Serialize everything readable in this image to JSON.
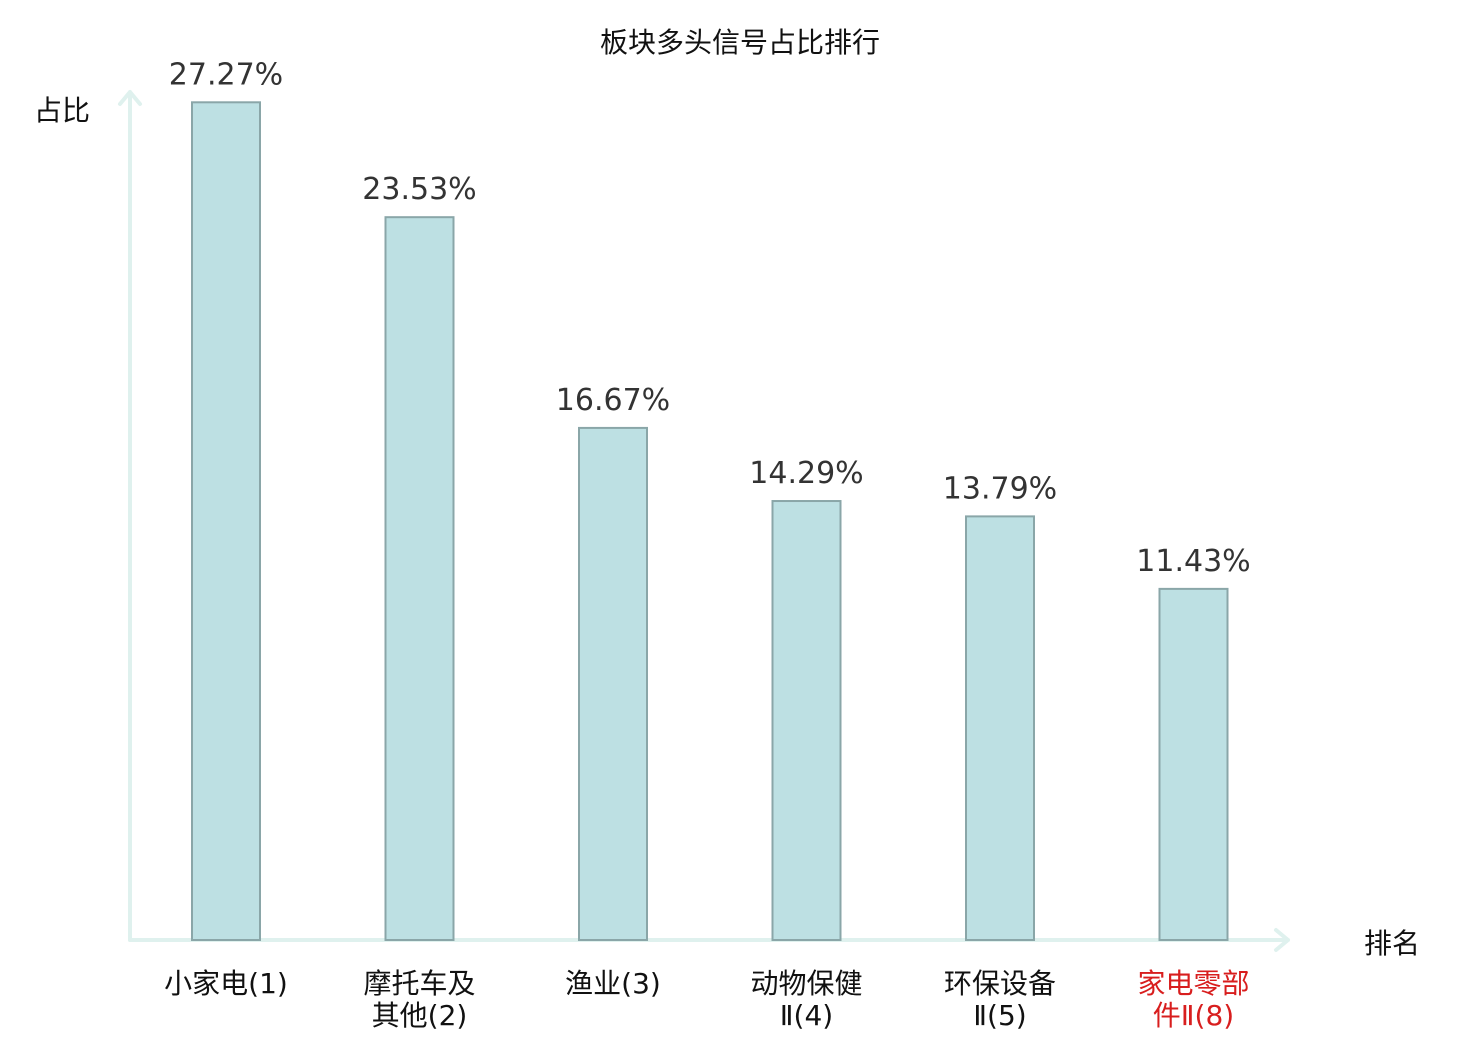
{
  "chart_data": {
    "type": "bar",
    "title": "板块多头信号占比排行",
    "ylabel": "占比",
    "xlabel": "排名",
    "ylim": [
      0,
      30.6
    ],
    "grid": false,
    "categories": [
      [
        "小家电(1)"
      ],
      [
        "摩托车及",
        "其他(2)"
      ],
      [
        "渔业(3)"
      ],
      [
        "动物保健",
        "Ⅱ(4)"
      ],
      [
        "环保设备",
        "Ⅱ(5)"
      ],
      [
        "家电零部",
        "件Ⅱ(8)"
      ]
    ],
    "values": [
      27.27,
      23.53,
      16.67,
      14.29,
      13.79,
      11.43
    ],
    "value_labels": [
      "27.27%",
      "23.53%",
      "16.67%",
      "14.29%",
      "13.79%",
      "11.43%"
    ],
    "highlight_index": 5,
    "colors": {
      "bar_fill": "#bde0e3",
      "bar_stroke": "#8aa6a8",
      "axis": "#dff1ee",
      "highlight_text": "#d81e1e"
    }
  }
}
